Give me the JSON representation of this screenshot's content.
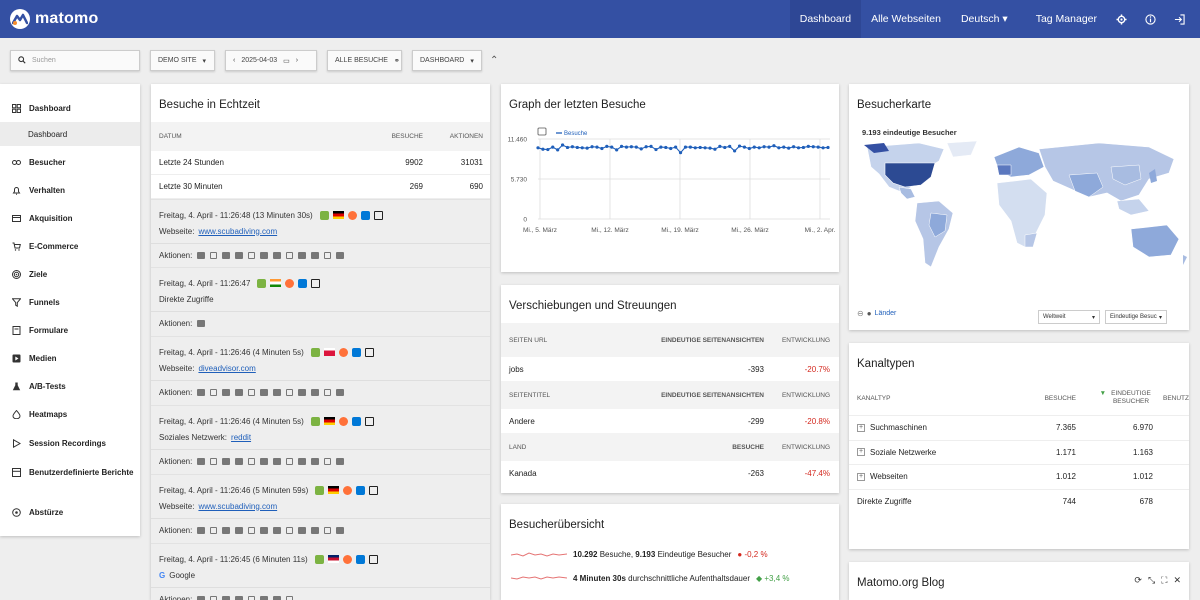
{
  "brand": {
    "name": "matomo",
    "color": "#3450a3"
  },
  "topnav": {
    "dashboard": "Dashboard",
    "all_sites": "Alle Webseiten",
    "language": "Deutsch",
    "tag_manager": "Tag Manager",
    "icons": [
      "gear-icon",
      "help-icon",
      "logout-icon"
    ]
  },
  "controls": {
    "search_placeholder": "Suchen",
    "site": "DEMO SITE",
    "date": "2025-04-03",
    "segment": "ALLE BESUCHE",
    "dashboard": "DASHBOARD"
  },
  "sidebar": {
    "items": [
      {
        "label": "Dashboard",
        "icon": "dashboard-icon"
      },
      {
        "label": "Dashboard",
        "sub": true
      },
      {
        "label": "Besucher",
        "icon": "visitors-icon"
      },
      {
        "label": "Verhalten",
        "icon": "bell-icon"
      },
      {
        "label": "Akquisition",
        "icon": "acquisition-icon"
      },
      {
        "label": "E-Commerce",
        "icon": "cart-icon"
      },
      {
        "label": "Ziele",
        "icon": "target-icon"
      },
      {
        "label": "Funnels",
        "icon": "funnel-icon"
      },
      {
        "label": "Formulare",
        "icon": "form-icon"
      },
      {
        "label": "Medien",
        "icon": "media-icon"
      },
      {
        "label": "A/B-Tests",
        "icon": "flask-icon"
      },
      {
        "label": "Heatmaps",
        "icon": "heatmap-icon"
      },
      {
        "label": "Session Recordings",
        "icon": "play-icon"
      },
      {
        "label": "Benutzerdefinierte Berichte",
        "icon": "report-icon"
      },
      {
        "label": "Abstürze",
        "icon": "crash-icon"
      }
    ]
  },
  "live": {
    "title": "Besuche in Echtzeit",
    "headers": {
      "date": "DATUM",
      "visits": "BESUCHE",
      "actions": "AKTIONEN"
    },
    "rows": [
      {
        "label": "Letzte 24 Stunden",
        "visits": "9902",
        "actions": "31031"
      },
      {
        "label": "Letzte 30 Minuten",
        "visits": "269",
        "actions": "690"
      }
    ],
    "visits": [
      {
        "time": "Freitag, 4. April - 11:26:48 (13 Minuten 30s)",
        "source_label": "Webseite:",
        "source": "www.scubadiving.com",
        "link": true,
        "actions_label": "Aktionen:",
        "action_count": 12
      },
      {
        "time": "Freitag, 4. April - 11:26:47",
        "source_label": "Direkte Zugriffe",
        "source": "",
        "link": false,
        "actions_label": "Aktionen:",
        "action_count": 1
      },
      {
        "time": "Freitag, 4. April - 11:26:46 (4 Minuten 5s)",
        "source_label": "Webseite:",
        "source": "diveadvisor.com",
        "link": true,
        "actions_label": "Aktionen:",
        "action_count": 12
      },
      {
        "time": "Freitag, 4. April - 11:26:46 (4 Minuten 5s)",
        "source_label": "Soziales Netzwerk:",
        "source": "reddit",
        "link": true,
        "actions_label": "Aktionen:",
        "action_count": 12
      },
      {
        "time": "Freitag, 4. April - 11:26:46 (5 Minuten 59s)",
        "source_label": "Webseite:",
        "source": "www.scubadiving.com",
        "link": true,
        "actions_label": "Aktionen:",
        "action_count": 12
      },
      {
        "time": "Freitag, 4. April - 11:26:45 (6 Minuten 11s)",
        "source_label": "Google",
        "source": "",
        "link": false,
        "actions_label": "Aktionen:",
        "action_count": 8
      }
    ]
  },
  "graph": {
    "title": "Graph der letzten Besuche",
    "legend": "Besuche",
    "chart_data": {
      "type": "line",
      "series": [
        {
          "name": "Besuche",
          "values": [
            10200,
            10000,
            9950,
            10300,
            9900,
            10600,
            10250,
            10350,
            10250,
            10200,
            10150,
            10350,
            10300,
            10100,
            10400,
            10300,
            9900,
            10400,
            10300,
            10350,
            10300,
            10050,
            10350,
            10400,
            9950,
            10300,
            10250,
            10100,
            10300,
            9500,
            10300,
            10300,
            10200,
            10250,
            10200,
            10150,
            10000,
            10400,
            10250,
            10400,
            9750,
            10450,
            10300,
            10100,
            10300,
            10200,
            10350,
            10300,
            10500,
            10200,
            10300,
            10150,
            10350,
            10200,
            10250,
            10400,
            10350,
            10300,
            10200,
            10250
          ]
        }
      ],
      "yticks": [
        "0",
        "5.730",
        "11.460"
      ],
      "ylim": [
        0,
        11460
      ],
      "xticks": [
        "Mi., 5. März",
        "Mi., 12. März",
        "Mi., 19. März",
        "Mi., 26. März",
        "Mi., 2. Apr."
      ]
    }
  },
  "shifts": {
    "title": "Verschiebungen und Streuungen",
    "sections": [
      {
        "h1": "SEITEN URL",
        "h2": "EINDEUTIGE SEITENANSICHTEN",
        "h3": "ENTWICKLUNG",
        "label": "jobs",
        "value": "-393",
        "change": "-20.7%"
      },
      {
        "h1": "SEITENTITEL",
        "h2": "EINDEUTIGE SEITENANSICHTEN",
        "h3": "ENTWICKLUNG",
        "label": "Andere",
        "value": "-299",
        "change": "-20.8%"
      },
      {
        "h1": "LAND",
        "h2": "BESUCHE",
        "h3": "ENTWICKLUNG",
        "label": "Kanada",
        "value": "-263",
        "change": "-47.4%"
      }
    ]
  },
  "overview": {
    "title": "Besucherübersicht",
    "lines": [
      {
        "bold": "10.292",
        "text": "Besuche,",
        "bold2": "9.193",
        "text2": "Eindeutige Besucher",
        "change": "-0,2 %",
        "neg": true
      },
      {
        "bold": "4 Minuten 30s",
        "text": "durchschnittliche Aufenthaltsdauer",
        "bold2": "",
        "text2": "",
        "change": "+3,4 %",
        "neg": false
      }
    ]
  },
  "map": {
    "title": "Besucherkarte",
    "legend": "9.193 eindeutige Besucher",
    "countries_link": "Länder",
    "region_select": "Weltweit",
    "metric_select": "Eindeutige Besuc"
  },
  "channels": {
    "title": "Kanaltypen",
    "headers": {
      "type": "KANALTYP",
      "visits": "BESUCHE",
      "unique": "EINDEUTIGE BESUCHER",
      "extra": "BENUTZ"
    },
    "rows": [
      {
        "label": "Suchmaschinen",
        "visits": "7.365",
        "unique": "6.970",
        "expand": true
      },
      {
        "label": "Soziale Netzwerke",
        "visits": "1.171",
        "unique": "1.163",
        "expand": true
      },
      {
        "label": "Webseiten",
        "visits": "1.012",
        "unique": "1.012",
        "expand": true
      },
      {
        "label": "Direkte Zugriffe",
        "visits": "744",
        "unique": "678",
        "expand": false
      }
    ]
  },
  "blog": {
    "title": "Matomo.org Blog"
  }
}
